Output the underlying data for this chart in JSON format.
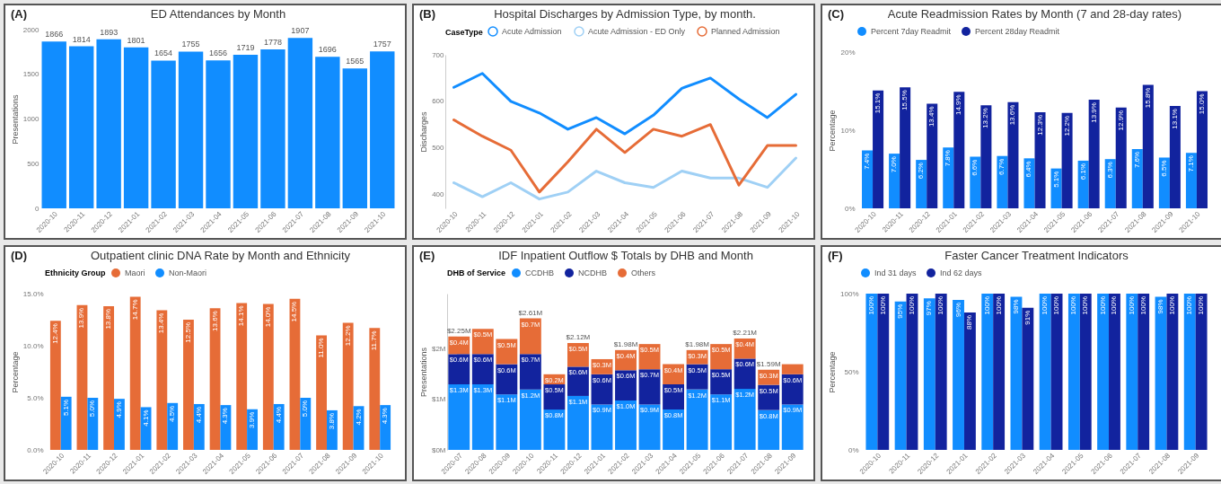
{
  "chart_data": [
    {
      "type": "bar",
      "title": "ED Attendances by Month",
      "annotations": [
        "(A)"
      ],
      "ylabel": "Presentations",
      "categories": [
        "2020-10",
        "2020-11",
        "2020-12",
        "2021-01",
        "2021-02",
        "2021-03",
        "2021-04",
        "2021-05",
        "2021-06",
        "2021-07",
        "2021-08",
        "2021-09",
        "2021-10"
      ],
      "values": [
        1866,
        1814,
        1893,
        1801,
        1654,
        1755,
        1656,
        1719,
        1778,
        1907,
        1696,
        1565,
        1757
      ],
      "color": "#118dff",
      "data_labels": true,
      "ylim": [
        0,
        2000
      ],
      "yticks": [
        0,
        500,
        1000,
        1500,
        2000
      ]
    },
    {
      "type": "line",
      "title": "Hospital Discharges by Admission Type, by month.",
      "annotations": [
        "(B)"
      ],
      "ylabel": "Discharges",
      "legend_title": "CaseType",
      "legend": "top",
      "categories": [
        "2020-10",
        "2020-11",
        "2020-12",
        "2021-01",
        "2021-02",
        "2021-03",
        "2021-04",
        "2021-05",
        "2021-06",
        "2021-07",
        "2021-08",
        "2021-09",
        "2021-10"
      ],
      "series": [
        {
          "name": "Acute Admission",
          "color": "#118dff",
          "values": [
            630,
            660,
            600,
            575,
            540,
            565,
            530,
            570,
            628,
            650,
            605,
            565,
            615
          ]
        },
        {
          "name": "Acute Admission - ED Only",
          "color": "#9fd0f5",
          "values": [
            425,
            395,
            425,
            390,
            405,
            450,
            425,
            415,
            450,
            435,
            435,
            415,
            478
          ]
        },
        {
          "name": "Planned Admission",
          "color": "#e66c37",
          "values": [
            560,
            525,
            495,
            405,
            470,
            540,
            490,
            540,
            525,
            550,
            420,
            505,
            505
          ]
        }
      ],
      "ylim": [
        370,
        700
      ],
      "yticks": [
        400,
        500,
        600,
        700
      ]
    },
    {
      "type": "bar",
      "title": "Acute Readmission Rates by Month (7 and 28-day rates)",
      "annotations": [
        "(C)"
      ],
      "ylabel": "Percentage",
      "legend": "top",
      "categories": [
        "2020-10",
        "2020-11",
        "2020-12",
        "2021-01",
        "2021-02",
        "2021-03",
        "2021-04",
        "2021-05",
        "2021-06",
        "2021-07",
        "2021-08",
        "2021-09",
        "2021-10"
      ],
      "series": [
        {
          "name": "Percent 7day Readmit",
          "color": "#118dff",
          "values": [
            7.4,
            7.0,
            6.2,
            7.8,
            6.6,
            6.7,
            6.4,
            5.1,
            6.1,
            6.3,
            7.6,
            6.5,
            7.1
          ],
          "value_labels": [
            "7.4%",
            "7.0%",
            "6.2%",
            "7.8%",
            "6.6%",
            "6.7%",
            "6.4%",
            "5.1%",
            "6.1%",
            "6.3%",
            "7.6%",
            "6.5%",
            "7.1%"
          ]
        },
        {
          "name": "Percent 28day Readmit",
          "color": "#12239e",
          "values": [
            15.1,
            15.5,
            13.4,
            14.9,
            13.2,
            13.6,
            12.3,
            12.2,
            13.9,
            12.9,
            15.8,
            13.1,
            15.0
          ],
          "value_labels": [
            "15.1%",
            "15.5%",
            "13.4%",
            "14.9%",
            "13.2%",
            "13.6%",
            "12.3%",
            "12.2%",
            "13.9%",
            "12.9%",
            "15.8%",
            "13.1%",
            "15.0%"
          ]
        }
      ],
      "ylim": [
        0,
        20
      ],
      "yticks": [
        {
          "value": 0,
          "label": "0%"
        },
        {
          "value": 10,
          "label": "10%"
        },
        {
          "value": 20,
          "label": "20%"
        }
      ]
    },
    {
      "type": "bar",
      "title": "Outpatient clinic DNA Rate by Month and Ethnicity",
      "annotations": [
        "(D)"
      ],
      "ylabel": "Percentage",
      "legend_title": "Ethnicity Group",
      "legend": "top",
      "categories": [
        "2020-10",
        "2020-11",
        "2020-12",
        "2021-01",
        "2021-02",
        "2021-03",
        "2021-04",
        "2021-05",
        "2021-06",
        "2021-07",
        "2021-08",
        "2021-09",
        "2021-10"
      ],
      "series": [
        {
          "name": "Maori",
          "color": "#e66c37",
          "values": [
            12.4,
            13.9,
            13.8,
            14.7,
            13.4,
            12.5,
            13.6,
            14.1,
            14.0,
            14.5,
            11.0,
            12.2,
            11.7
          ],
          "value_labels": [
            "12.4%",
            "13.9%",
            "13.8%",
            "14.7%",
            "13.4%",
            "12.5%",
            "13.6%",
            "14.1%",
            "14.0%",
            "14.5%",
            "11.0%",
            "12.2%",
            "11.7%"
          ]
        },
        {
          "name": "Non-Maori",
          "color": "#118dff",
          "values": [
            5.1,
            5.0,
            4.9,
            4.1,
            4.5,
            4.4,
            4.3,
            3.9,
            4.4,
            5.0,
            3.8,
            4.2,
            4.3
          ],
          "value_labels": [
            "5.1%",
            "5.0%",
            "4.9%",
            "4.1%",
            "4.5%",
            "4.4%",
            "4.3%",
            "3.9%",
            "4.4%",
            "5.0%",
            "3.8%",
            "4.2%",
            "4.3%"
          ]
        }
      ],
      "ylim": [
        0,
        15
      ],
      "yticks": [
        {
          "value": 0,
          "label": "0.0%"
        },
        {
          "value": 5,
          "label": "5.0%"
        },
        {
          "value": 10,
          "label": "10.0%"
        },
        {
          "value": 15,
          "label": "15.0%"
        }
      ]
    },
    {
      "type": "bar",
      "stacked": true,
      "title": "IDF Inpatient Outflow $ Totals by DHB and Month",
      "annotations": [
        "(E)"
      ],
      "ylabel": "Presentations",
      "legend_title": "DHB of Service",
      "legend": "top",
      "categories": [
        "2020-07",
        "2020-08",
        "2020-09",
        "2020-10",
        "2020-11",
        "2020-12",
        "2021-01",
        "2021-02",
        "2021-03",
        "2021-04",
        "2021-05",
        "2021-06",
        "2021-07",
        "2021-08",
        "2021-09"
      ],
      "series": [
        {
          "name": "CCDHB",
          "color": "#118dff",
          "values": [
            1.3,
            1.3,
            1.1,
            1.2,
            0.8,
            1.07,
            0.9,
            0.98,
            0.9,
            0.8,
            1.2,
            1.1,
            1.21,
            0.79,
            0.9
          ],
          "value_labels": [
            "$1.3M",
            "$1.3M",
            "$1.1M",
            "$1.2M",
            "$0.8M",
            "$1.1M",
            "$0.9M",
            "$1.0M",
            "$0.9M",
            "$0.8M",
            "$1.2M",
            "$1.1M",
            "$1.2M",
            "$0.8M",
            "$0.9M"
          ]
        },
        {
          "name": "NCDHB",
          "color": "#12239e",
          "values": [
            0.6,
            0.6,
            0.6,
            0.7,
            0.5,
            0.58,
            0.6,
            0.6,
            0.7,
            0.5,
            0.5,
            0.5,
            0.6,
            0.5,
            0.6
          ],
          "value_labels": [
            "$0.6M",
            "$0.6M",
            "$0.6M",
            "$0.7M",
            "$0.5M",
            "$0.6M",
            "$0.6M",
            "$0.6M",
            "$0.7M",
            "$0.5M",
            "$0.5M",
            "$0.5M",
            "$0.6M",
            "$0.5M",
            "$0.6M"
          ]
        },
        {
          "name": "Others",
          "color": "#e66c37",
          "values": [
            0.35,
            0.5,
            0.5,
            0.71,
            0.2,
            0.47,
            0.3,
            0.4,
            0.5,
            0.4,
            0.28,
            0.5,
            0.4,
            0.3,
            0.2
          ],
          "value_labels": [
            "$0.4M",
            "$0.5M",
            "$0.5M",
            "$0.7M",
            "$0.2M",
            "$0.5M",
            "$0.3M",
            "$0.4M",
            "$0.5M",
            "$0.4M",
            "$0.3M",
            "$0.5M",
            "$0.4M",
            "$0.3M",
            null
          ]
        }
      ],
      "totals": [
        "$2.25M",
        null,
        null,
        "$2.61M",
        null,
        "$2.12M",
        null,
        "$1.98M",
        null,
        null,
        "$1.98M",
        null,
        "$2.21M",
        "$1.59M",
        null
      ],
      "ylim": [
        0,
        3.1
      ],
      "yticks": [
        {
          "value": 0,
          "label": "$0M"
        },
        {
          "value": 1,
          "label": "$1M"
        },
        {
          "value": 2,
          "label": "$2M"
        }
      ]
    },
    {
      "type": "bar",
      "title": "Faster Cancer Treatment Indicators",
      "annotations": [
        "(F)"
      ],
      "ylabel": "Percentage",
      "legend": "top",
      "categories": [
        "2020-10",
        "2020-11",
        "2020-12",
        "2021-01",
        "2021-02",
        "2021-03",
        "2021-04",
        "2021-05",
        "2021-06",
        "2021-07",
        "2021-08",
        "2021-09"
      ],
      "series": [
        {
          "name": "Ind 31 days",
          "color": "#118dff",
          "values": [
            100,
            95,
            97,
            96,
            100,
            98,
            100,
            100,
            100,
            100,
            98,
            100
          ],
          "value_labels": [
            "100%",
            "95%",
            "97%",
            "96%",
            "100%",
            "98%",
            "100%",
            "100%",
            "100%",
            "100%",
            "98%",
            "100%"
          ]
        },
        {
          "name": "Ind 62 days",
          "color": "#12239e",
          "values": [
            100,
            100,
            100,
            88,
            100,
            91,
            100,
            100,
            100,
            100,
            100,
            100
          ],
          "value_labels": [
            "100%",
            "100%",
            "100%",
            "88%",
            "100%",
            "91%",
            "100%",
            "100%",
            "100%",
            "100%",
            "100%",
            "100%"
          ]
        }
      ],
      "ylim": [
        0,
        100
      ],
      "yticks": [
        {
          "value": 0,
          "label": "0%"
        },
        {
          "value": 50,
          "label": "50%"
        },
        {
          "value": 100,
          "label": "100%"
        }
      ]
    }
  ]
}
